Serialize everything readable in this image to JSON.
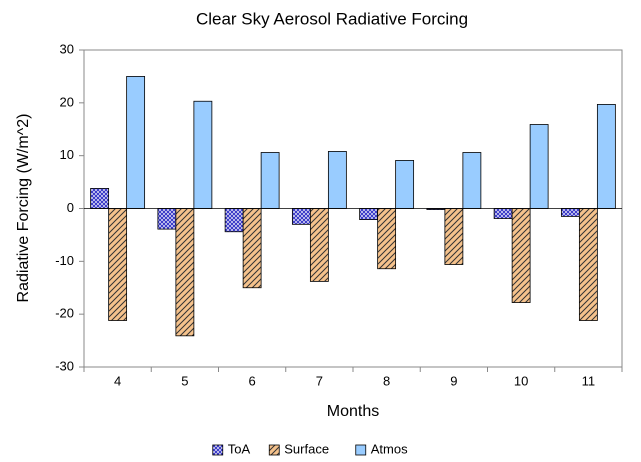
{
  "chart_data": {
    "type": "bar",
    "title": "Clear Sky Aerosol Radiative Forcing",
    "xlabel": "Months",
    "ylabel": "Radiative Forcing (W/m^2)",
    "categories": [
      "4",
      "5",
      "6",
      "7",
      "8",
      "9",
      "10",
      "11"
    ],
    "series": [
      {
        "name": "ToA",
        "color": "#3a3ac8",
        "pattern": "crosshatch",
        "values": [
          3.8,
          -3.9,
          -4.4,
          -3.0,
          -2.1,
          -0.2,
          -1.9,
          -1.5
        ]
      },
      {
        "name": "Surface",
        "color": "#f5c28c",
        "pattern": "diagonal",
        "values": [
          -21.2,
          -24.1,
          -15.0,
          -13.8,
          -11.4,
          -10.6,
          -17.8,
          -21.2
        ]
      },
      {
        "name": "Atmos",
        "color": "#99ccff",
        "values": [
          25.0,
          20.3,
          10.6,
          10.8,
          9.1,
          10.6,
          15.9,
          19.7
        ]
      }
    ],
    "ylim": [
      -30,
      30
    ],
    "yticks": [
      -30,
      -20,
      -10,
      0,
      10,
      20,
      30
    ],
    "grid": false,
    "legend": "bottom"
  }
}
